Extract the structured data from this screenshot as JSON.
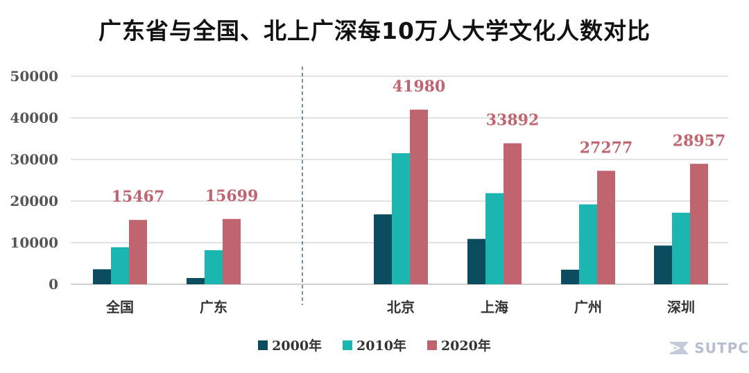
{
  "chart_data": {
    "type": "bar",
    "title": "广东省与全国、北上广深每10万人大学文化人数对比",
    "xlabel": "",
    "ylabel": "",
    "ylim": [
      0,
      50000
    ],
    "yticks": [
      0,
      10000,
      20000,
      30000,
      40000,
      50000
    ],
    "grid": true,
    "groups": [
      {
        "categories": [
          "全国",
          "广东"
        ]
      },
      {
        "categories": [
          "北京",
          "上海",
          "广州",
          "深圳"
        ]
      }
    ],
    "categories": [
      "全国",
      "广东",
      "北京",
      "上海",
      "广州",
      "深圳"
    ],
    "series": [
      {
        "name": "2000年",
        "color": "#0b4d5f",
        "values": [
          3600,
          1500,
          16800,
          10900,
          3500,
          9300
        ]
      },
      {
        "name": "2010年",
        "color": "#1cb6b0",
        "values": [
          8900,
          8200,
          31500,
          21900,
          19200,
          17200
        ]
      },
      {
        "name": "2020年",
        "color": "#c0646f",
        "values": [
          15467,
          15699,
          41980,
          33892,
          27277,
          28957
        ]
      }
    ],
    "data_labels": {
      "series": "2020年",
      "values": [
        "15467",
        "15699",
        "41980",
        "33892",
        "27277",
        "28957"
      ],
      "color": "#c0646f"
    },
    "legend_position": "bottom"
  },
  "watermark": {
    "text": "SUTPC",
    "icon": "sutpc-logo-icon"
  }
}
